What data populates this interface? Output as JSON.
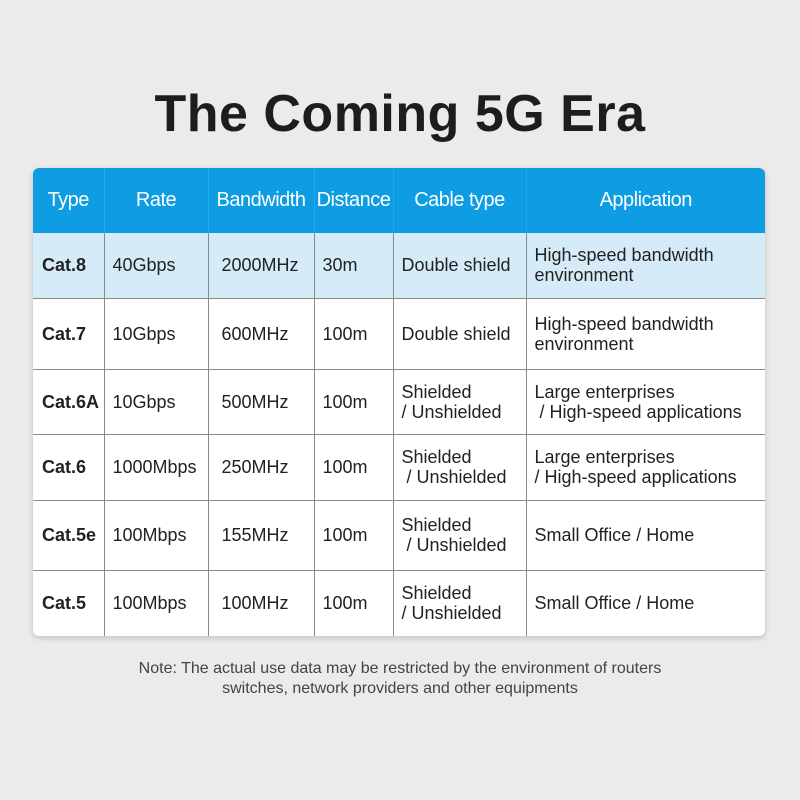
{
  "title": "The Coming 5G Era",
  "table": {
    "headers": [
      "Type",
      "Rate",
      "Bandwidth",
      "Distance",
      "Cable type",
      "Application"
    ],
    "rows": [
      {
        "type": "Cat.8",
        "rate": "40Gbps",
        "bandwidth": "2000MHz",
        "distance": "30m",
        "cable": [
          "Double shield"
        ],
        "application": [
          "High-speed bandwidth",
          "environment"
        ]
      },
      {
        "type": "Cat.7",
        "rate": "10Gbps",
        "bandwidth": "600MHz",
        "distance": "100m",
        "cable": [
          "Double shield"
        ],
        "application": [
          "High-speed bandwidth",
          "environment"
        ]
      },
      {
        "type": "Cat.6A",
        "rate": "10Gbps",
        "bandwidth": "500MHz",
        "distance": "100m",
        "cable": [
          "Shielded",
          "/ Unshielded"
        ],
        "application": [
          "Large enterprises",
          " / High-speed applications"
        ]
      },
      {
        "type": "Cat.6",
        "rate": "1000Mbps",
        "bandwidth": "250MHz",
        "distance": "100m",
        "cable": [
          "Shielded",
          " / Unshielded"
        ],
        "application": [
          "Large enterprises",
          "/ High-speed applications"
        ]
      },
      {
        "type": "Cat.5e",
        "rate": "100Mbps",
        "bandwidth": "155MHz",
        "distance": "100m",
        "cable": [
          "Shielded",
          " / Unshielded"
        ],
        "application": [
          "Small Office / Home"
        ]
      },
      {
        "type": "Cat.5",
        "rate": "100Mbps",
        "bandwidth": "100MHz",
        "distance": "100m",
        "cable": [
          "Shielded",
          "/ Unshielded"
        ],
        "application": [
          "Small Office / Home"
        ]
      }
    ]
  },
  "note": [
    "Note: The actual use data may be restricted by the environment of routers",
    "switches, network providers and other equipments"
  ],
  "colors": {
    "header": "#0e9de2",
    "highlight_row": "#d5ecf8",
    "background": "#ebebeb"
  }
}
